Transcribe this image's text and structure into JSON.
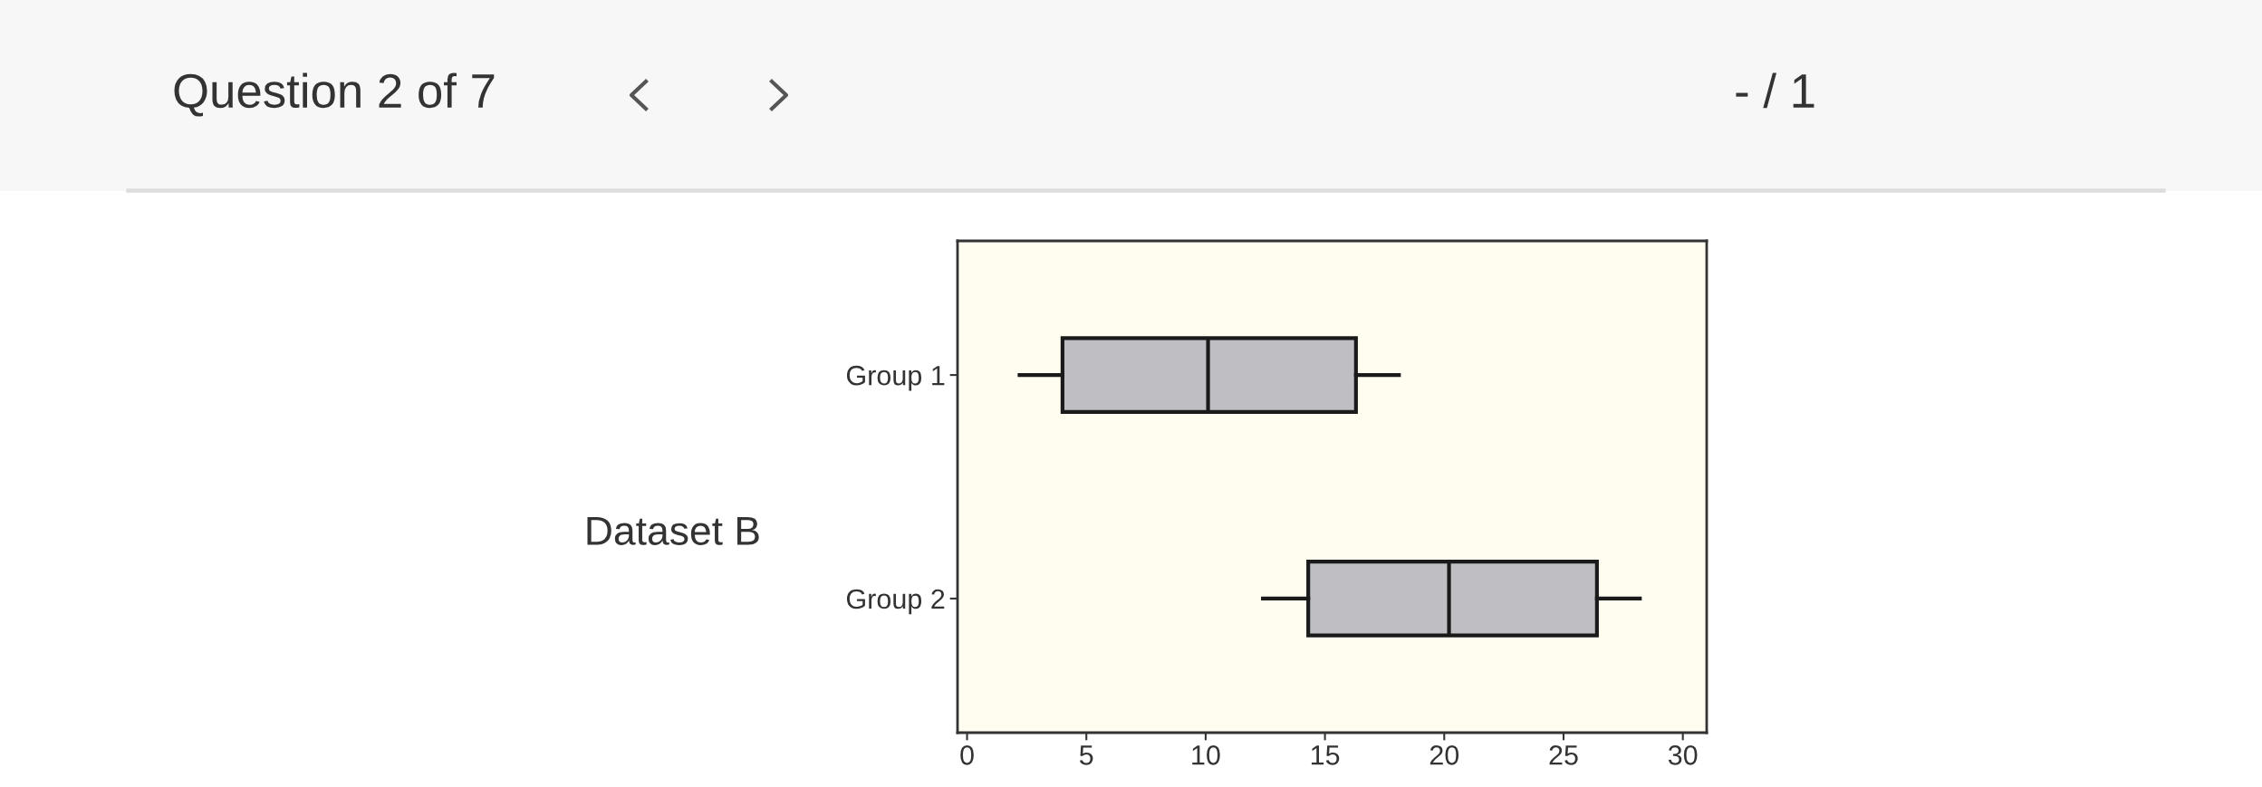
{
  "chart_data": {
    "type": "box",
    "orientation": "horizontal",
    "categories": [
      "Group 1",
      "Group 2"
    ],
    "boxes": [
      {
        "low": 2.2,
        "q1": 4,
        "median": 10.1,
        "q3": 16.3,
        "high": 18.1
      },
      {
        "low": 12.4,
        "q1": 14.3,
        "median": 20.2,
        "q3": 26.4,
        "high": 28.2
      }
    ],
    "color": "#bfbfc3",
    "xlim": [
      -0.4,
      31
    ],
    "xticks": [
      0,
      5,
      10,
      15,
      20,
      25,
      30
    ],
    "grid": false,
    "annotations": [
      "Question 2 of 7",
      "- / 1",
      "Dataset B"
    ]
  }
}
